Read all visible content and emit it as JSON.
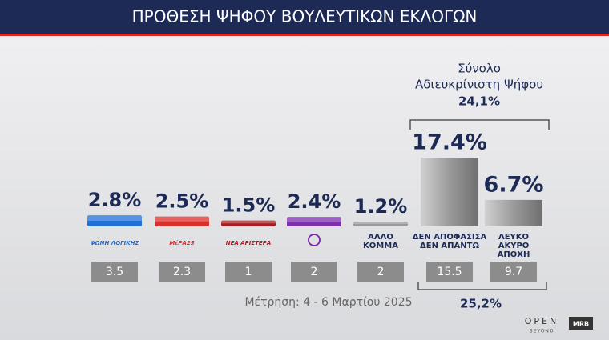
{
  "chart_data": {
    "type": "bar",
    "title": "ΠΡΟΘΕΣΗ ΨΗΦΟΥ ΒΟΥΛΕΥΤΙΚΩΝ ΕΚΛΟΓΩΝ",
    "categories": [
      [
        "ΦΩΝΗ ΛΟΓΙΚΗΣ"
      ],
      [
        "ΜέΡΑ25"
      ],
      [
        "ΝΕΑ ΑΡΙΣΤΕΡΑ"
      ],
      null,
      [
        "ΑΛΛΟ",
        "ΚΟΜΜΑ"
      ],
      [
        "ΔΕΝ ΑΠΟΦΑΣΙΣΑ",
        "ΔΕΝ ΑΠΑΝΤΩ"
      ],
      [
        "ΛΕΥΚΟ",
        "ΑΚΥΡΟ",
        "ΑΠΟΧΗ"
      ]
    ],
    "values": [
      2.8,
      2.5,
      1.5,
      2.4,
      1.2,
      17.4,
      6.7
    ],
    "value_labels": [
      "2.8%",
      "2.5%",
      "1.5%",
      "2.4%",
      "1.2%",
      "17.4%",
      "6.7%"
    ],
    "colors": [
      "#1e6fd6",
      "#d9302c",
      "#a81c22",
      "#7d2fae",
      "#9a9a9a",
      "#8c8c8c",
      "#8c8c8c"
    ],
    "previous_values": [
      3.5,
      2.3,
      1,
      2,
      2,
      15.5,
      9.7
    ],
    "annotations": {
      "undecided_title": [
        "Σύνολο",
        "Αδιευκρίνιστη  Ψήφου"
      ],
      "undecided_total": "24,1%",
      "previous_total": "25,2%",
      "measurement": "Μέτρηση: 4 - 6 Μαρτίου 2025"
    },
    "branding": {
      "channel": "OPEN",
      "channel_sub": "BEYOND",
      "pollster": "MRB"
    }
  }
}
